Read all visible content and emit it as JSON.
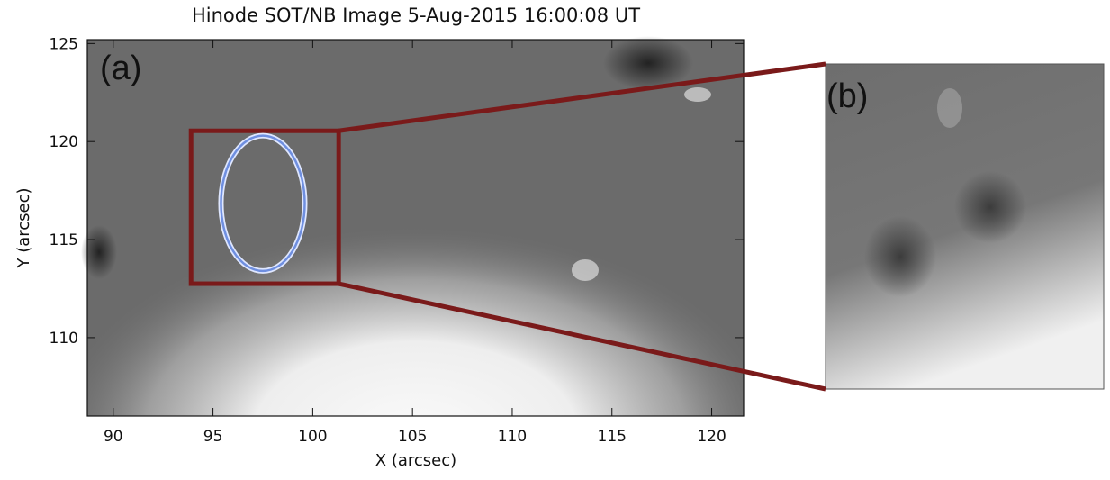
{
  "chart_data": {
    "type": "image",
    "title": "Hinode SOT/NB Image 5-Aug-2015 16:00:08 UT",
    "x_label": "X (arcsec)",
    "y_label": "Y (arcsec)",
    "panel_labels": [
      "(a)",
      "(b)"
    ],
    "xlim": [
      88.7,
      121.6
    ],
    "ylim": [
      106,
      125.2
    ],
    "xticks": [
      90,
      95,
      100,
      105,
      110,
      115,
      120
    ],
    "yticks": [
      110,
      115,
      120,
      125
    ],
    "zoom_box": {
      "x": [
        93.9,
        101.3
      ],
      "y": [
        112.75,
        120.55
      ],
      "color": "#7a1a1a"
    },
    "ellipse": {
      "x": [
        95.4,
        99.6
      ],
      "y": [
        113.4,
        120.3
      ],
      "color": "#6f8fe0"
    }
  }
}
